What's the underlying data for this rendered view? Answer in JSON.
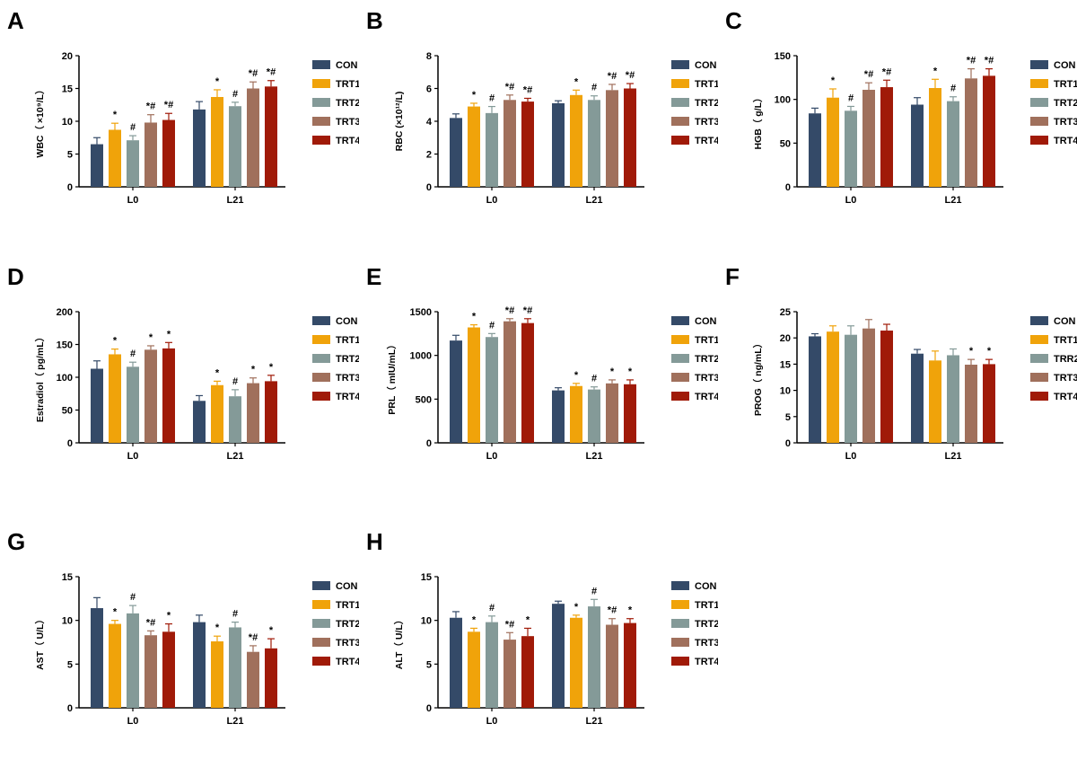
{
  "groups": [
    "CON",
    "TRT1",
    "TRT2",
    "TRT3",
    "TRT4"
  ],
  "colors": {
    "CON": "#344a68",
    "TRT1": "#f0a30a",
    "TRT2": "#849a98",
    "TRT3": "#a0705c",
    "TRT4": "#a01a08"
  },
  "chart_data": [
    {
      "panel": "A",
      "type": "bar",
      "ylabel": "WBC（ ×10⁹/L）",
      "ylim": [
        0,
        20
      ],
      "yticks": [
        0,
        5,
        10,
        15,
        20
      ],
      "categories": [
        "L0",
        "L21"
      ],
      "legend": [
        "CON",
        "TRT1",
        "TRT2",
        "TRT3",
        "TRT4"
      ],
      "series": [
        {
          "name": "CON",
          "values": [
            6.5,
            11.8
          ],
          "errors": [
            1.0,
            1.2
          ],
          "annotations": [
            "",
            ""
          ]
        },
        {
          "name": "TRT1",
          "values": [
            8.7,
            13.7
          ],
          "errors": [
            1.0,
            1.1
          ],
          "annotations": [
            "*",
            "*"
          ]
        },
        {
          "name": "TRT2",
          "values": [
            7.1,
            12.3
          ],
          "errors": [
            0.7,
            0.6
          ],
          "annotations": [
            "#",
            "#"
          ]
        },
        {
          "name": "TRT3",
          "values": [
            9.8,
            15.0
          ],
          "errors": [
            1.2,
            1.0
          ],
          "annotations": [
            "*#",
            "*#"
          ]
        },
        {
          "name": "TRT4",
          "values": [
            10.2,
            15.3
          ],
          "errors": [
            1.0,
            0.9
          ],
          "annotations": [
            "*#",
            "*#"
          ]
        }
      ]
    },
    {
      "panel": "B",
      "type": "bar",
      "ylabel": "RBC (×10¹²/L)",
      "ylim": [
        0,
        8
      ],
      "yticks": [
        0,
        2,
        4,
        6,
        8
      ],
      "categories": [
        "L0",
        "L21"
      ],
      "legend": [
        "CON",
        "TRT1",
        "TRT2",
        "TRT3",
        "TRT4"
      ],
      "series": [
        {
          "name": "CON",
          "values": [
            4.2,
            5.1
          ],
          "errors": [
            0.25,
            0.15
          ],
          "annotations": [
            "",
            ""
          ]
        },
        {
          "name": "TRT1",
          "values": [
            4.9,
            5.6
          ],
          "errors": [
            0.2,
            0.3
          ],
          "annotations": [
            "*",
            "*"
          ]
        },
        {
          "name": "TRT2",
          "values": [
            4.5,
            5.3
          ],
          "errors": [
            0.4,
            0.25
          ],
          "annotations": [
            "#",
            "#"
          ]
        },
        {
          "name": "TRT3",
          "values": [
            5.3,
            5.9
          ],
          "errors": [
            0.3,
            0.35
          ],
          "annotations": [
            "*#",
            "*#"
          ]
        },
        {
          "name": "TRT4",
          "values": [
            5.2,
            6.0
          ],
          "errors": [
            0.2,
            0.3
          ],
          "annotations": [
            "*#",
            "*#"
          ]
        }
      ]
    },
    {
      "panel": "C",
      "type": "bar",
      "ylabel": "HGB（ g/L）",
      "ylim": [
        0,
        150
      ],
      "yticks": [
        0,
        50,
        100,
        150
      ],
      "categories": [
        "L0",
        "L21"
      ],
      "legend": [
        "CON",
        "TRT1",
        "TRT2",
        "TRT3",
        "TRT4"
      ],
      "series": [
        {
          "name": "CON",
          "values": [
            84,
            94
          ],
          "errors": [
            6,
            8
          ],
          "annotations": [
            "",
            ""
          ]
        },
        {
          "name": "TRT1",
          "values": [
            102,
            113
          ],
          "errors": [
            10,
            10
          ],
          "annotations": [
            "*",
            "*"
          ]
        },
        {
          "name": "TRT2",
          "values": [
            87,
            98
          ],
          "errors": [
            5,
            5
          ],
          "annotations": [
            "#",
            "#"
          ]
        },
        {
          "name": "TRT3",
          "values": [
            111,
            124
          ],
          "errors": [
            8,
            11
          ],
          "annotations": [
            "*#",
            "*#"
          ]
        },
        {
          "name": "TRT4",
          "values": [
            114,
            127
          ],
          "errors": [
            8,
            8
          ],
          "annotations": [
            "*#",
            "*#"
          ]
        }
      ]
    },
    {
      "panel": "D",
      "type": "bar",
      "ylabel": "Estradiol（ pg/mL）",
      "ylim": [
        0,
        200
      ],
      "yticks": [
        0,
        50,
        100,
        150,
        200
      ],
      "categories": [
        "L0",
        "L21"
      ],
      "legend": [
        "CON",
        "TRT1",
        "TRT2",
        "TRT3",
        "TRT4"
      ],
      "series": [
        {
          "name": "CON",
          "values": [
            113,
            64
          ],
          "errors": [
            12,
            8
          ],
          "annotations": [
            "",
            ""
          ]
        },
        {
          "name": "TRT1",
          "values": [
            135,
            88
          ],
          "errors": [
            8,
            6
          ],
          "annotations": [
            "*",
            "*"
          ]
        },
        {
          "name": "TRT2",
          "values": [
            116,
            71
          ],
          "errors": [
            7,
            10
          ],
          "annotations": [
            "#",
            "#"
          ]
        },
        {
          "name": "TRT3",
          "values": [
            142,
            91
          ],
          "errors": [
            6,
            8
          ],
          "annotations": [
            "*",
            "*"
          ]
        },
        {
          "name": "TRT4",
          "values": [
            144,
            94
          ],
          "errors": [
            9,
            9
          ],
          "annotations": [
            "*",
            "*"
          ]
        }
      ]
    },
    {
      "panel": "E",
      "type": "bar",
      "ylabel": "PRL（ mIU/mL）",
      "ylim": [
        0,
        1500
      ],
      "yticks": [
        0,
        500,
        1000,
        1500
      ],
      "categories": [
        "L0",
        "L21"
      ],
      "legend": [
        "CON",
        "TRT1",
        "TRT2",
        "TRT3",
        "TRT4"
      ],
      "series": [
        {
          "name": "CON",
          "values": [
            1170,
            600
          ],
          "errors": [
            60,
            30
          ],
          "annotations": [
            "",
            ""
          ]
        },
        {
          "name": "TRT1",
          "values": [
            1320,
            650
          ],
          "errors": [
            30,
            30
          ],
          "annotations": [
            "*",
            "*"
          ]
        },
        {
          "name": "TRT2",
          "values": [
            1210,
            610
          ],
          "errors": [
            40,
            30
          ],
          "annotations": [
            "#",
            "#"
          ]
        },
        {
          "name": "TRT3",
          "values": [
            1390,
            680
          ],
          "errors": [
            30,
            40
          ],
          "annotations": [
            "*#",
            "*"
          ]
        },
        {
          "name": "TRT4",
          "values": [
            1370,
            670
          ],
          "errors": [
            50,
            50
          ],
          "annotations": [
            "*#",
            "*"
          ]
        }
      ]
    },
    {
      "panel": "F",
      "type": "bar",
      "ylabel": "PROG（ ng/mL）",
      "ylim": [
        0,
        25
      ],
      "yticks": [
        0,
        5,
        10,
        15,
        20,
        25
      ],
      "categories": [
        "L0",
        "L21"
      ],
      "legend": [
        "CON",
        "TRT1",
        "TRR2",
        "TRT3",
        "TRT4"
      ],
      "series": [
        {
          "name": "CON",
          "values": [
            20.3,
            17.0
          ],
          "errors": [
            0.5,
            0.8
          ],
          "annotations": [
            "",
            ""
          ]
        },
        {
          "name": "TRT1",
          "values": [
            21.2,
            15.7
          ],
          "errors": [
            1.1,
            1.8
          ],
          "annotations": [
            "",
            ""
          ]
        },
        {
          "name": "TRR2",
          "values": [
            20.6,
            16.7
          ],
          "errors": [
            1.7,
            1.2
          ],
          "annotations": [
            "",
            ""
          ]
        },
        {
          "name": "TRT3",
          "values": [
            21.8,
            14.9
          ],
          "errors": [
            1.7,
            1.0
          ],
          "annotations": [
            "",
            "*"
          ]
        },
        {
          "name": "TRT4",
          "values": [
            21.4,
            15.0
          ],
          "errors": [
            1.2,
            0.9
          ],
          "annotations": [
            "",
            "*"
          ]
        }
      ]
    },
    {
      "panel": "G",
      "type": "bar",
      "ylabel": "AST（ U/L）",
      "ylim": [
        0,
        15
      ],
      "yticks": [
        0,
        5,
        10,
        15
      ],
      "categories": [
        "L0",
        "L21"
      ],
      "legend": [
        "CON",
        "TRT1",
        "TRT2",
        "TRT3",
        "TRT4"
      ],
      "series": [
        {
          "name": "CON",
          "values": [
            11.4,
            9.8
          ],
          "errors": [
            1.2,
            0.8
          ],
          "annotations": [
            "",
            ""
          ]
        },
        {
          "name": "TRT1",
          "values": [
            9.6,
            7.6
          ],
          "errors": [
            0.4,
            0.6
          ],
          "annotations": [
            "*",
            "*"
          ]
        },
        {
          "name": "TRT2",
          "values": [
            10.8,
            9.2
          ],
          "errors": [
            0.9,
            0.6
          ],
          "annotations": [
            "#",
            "#"
          ]
        },
        {
          "name": "TRT3",
          "values": [
            8.3,
            6.4
          ],
          "errors": [
            0.5,
            0.7
          ],
          "annotations": [
            "*#",
            "*#"
          ]
        },
        {
          "name": "TRT4",
          "values": [
            8.7,
            6.8
          ],
          "errors": [
            0.9,
            1.1
          ],
          "annotations": [
            "*",
            "*"
          ]
        }
      ]
    },
    {
      "panel": "H",
      "type": "bar",
      "ylabel": "ALT（ U/L）",
      "ylim": [
        0,
        15
      ],
      "yticks": [
        0,
        5,
        10,
        15
      ],
      "categories": [
        "L0",
        "L21"
      ],
      "legend": [
        "CON",
        "TRT1",
        "TRT2",
        "TRT3",
        "TRT4"
      ],
      "series": [
        {
          "name": "CON",
          "values": [
            10.3,
            11.9
          ],
          "errors": [
            0.7,
            0.3
          ],
          "annotations": [
            "",
            ""
          ]
        },
        {
          "name": "TRT1",
          "values": [
            8.7,
            10.3
          ],
          "errors": [
            0.4,
            0.3
          ],
          "annotations": [
            "*",
            "*"
          ]
        },
        {
          "name": "TRT2",
          "values": [
            9.8,
            11.6
          ],
          "errors": [
            0.7,
            0.8
          ],
          "annotations": [
            "#",
            "#"
          ]
        },
        {
          "name": "TRT3",
          "values": [
            7.8,
            9.5
          ],
          "errors": [
            0.8,
            0.7
          ],
          "annotations": [
            "*#",
            "*#"
          ]
        },
        {
          "name": "TRT4",
          "values": [
            8.2,
            9.7
          ],
          "errors": [
            0.9,
            0.5
          ],
          "annotations": [
            "*",
            "*"
          ]
        }
      ]
    }
  ]
}
